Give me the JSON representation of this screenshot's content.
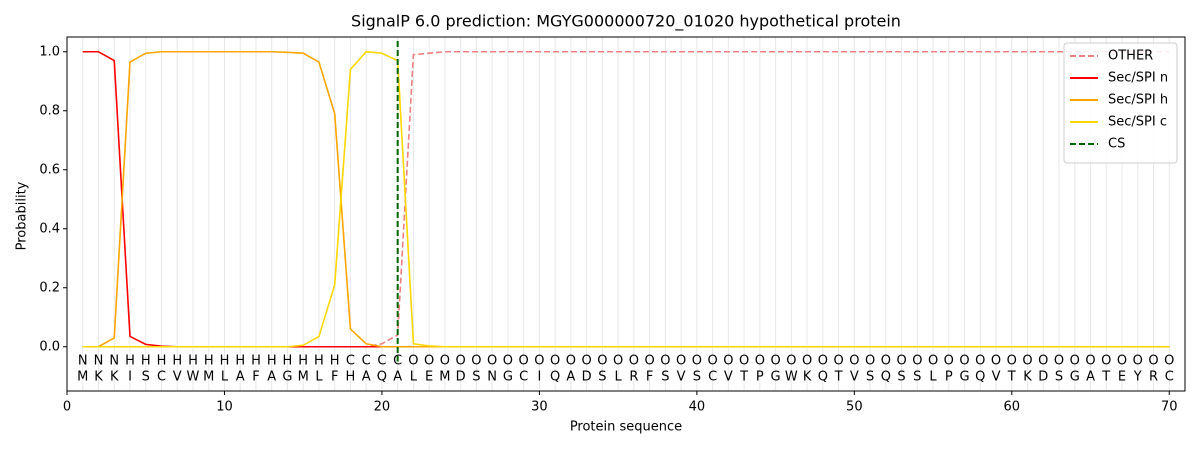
{
  "chart_data": {
    "type": "line",
    "title": "SignalP 6.0 prediction: MGYG000000720_01020 hypothetical protein",
    "x_label": "Protein sequence",
    "y_label": "Probability",
    "xlim": [
      0,
      71
    ],
    "ylim": [
      -0.15,
      1.05
    ],
    "xticks": [
      0,
      10,
      20,
      30,
      40,
      50,
      60,
      70
    ],
    "yticks": [
      {
        "value": 0,
        "label": "0.0"
      },
      {
        "value": 0.2,
        "label": "0.2"
      },
      {
        "value": 0.4,
        "label": "0.4"
      },
      {
        "value": 0.6,
        "label": "0.6"
      },
      {
        "value": 0.8,
        "label": "0.8"
      },
      {
        "value": 1,
        "label": "1.0"
      }
    ],
    "grid": true,
    "legend": "upper right",
    "x": [
      1,
      2,
      3,
      4,
      5,
      6,
      7,
      8,
      9,
      10,
      11,
      12,
      13,
      14,
      15,
      16,
      17,
      18,
      19,
      20,
      21,
      22,
      23,
      24,
      25,
      26,
      27,
      28,
      29,
      30,
      31,
      32,
      33,
      34,
      35,
      36,
      37,
      38,
      39,
      40,
      41,
      42,
      43,
      44,
      45,
      46,
      47,
      48,
      49,
      50,
      51,
      52,
      53,
      54,
      55,
      56,
      57,
      58,
      59,
      60,
      61,
      62,
      63,
      64,
      65,
      66,
      67,
      68,
      69,
      70
    ],
    "series": [
      {
        "name": "OTHER",
        "color": "#f08080",
        "dash": true,
        "values": [
          0,
          0,
          0,
          0,
          0,
          0,
          0,
          0,
          0,
          0,
          0,
          0,
          0,
          0,
          0,
          0,
          0,
          0,
          0,
          0.01,
          0.04,
          0.99,
          0.995,
          1,
          1,
          1,
          1,
          1,
          1,
          1,
          1,
          1,
          1,
          1,
          1,
          1,
          1,
          1,
          1,
          1,
          1,
          1,
          1,
          1,
          1,
          1,
          1,
          1,
          1,
          1,
          1,
          1,
          1,
          1,
          1,
          1,
          1,
          1,
          1,
          1,
          1,
          1,
          1,
          1,
          1,
          1,
          1,
          1,
          1,
          1
        ]
      },
      {
        "name": "Sec/SPI n",
        "color": "#ff0000",
        "values": [
          1,
          1,
          0.97,
          0.035,
          0.008,
          0.002,
          0,
          0,
          0,
          0,
          0,
          0,
          0,
          0,
          0,
          0,
          0,
          0,
          0,
          0,
          0,
          0,
          0,
          0,
          0,
          0,
          0,
          0,
          0,
          0,
          0,
          0,
          0,
          0,
          0,
          0,
          0,
          0,
          0,
          0,
          0,
          0,
          0,
          0,
          0,
          0,
          0,
          0,
          0,
          0,
          0,
          0,
          0,
          0,
          0,
          0,
          0,
          0,
          0,
          0,
          0,
          0,
          0,
          0,
          0,
          0,
          0,
          0,
          0,
          0
        ]
      },
      {
        "name": "Sec/SPI h",
        "color": "#ffa500",
        "values": [
          0,
          0,
          0.03,
          0.965,
          0.995,
          1,
          1,
          1,
          1,
          1,
          1,
          1,
          1,
          0.998,
          0.995,
          0.965,
          0.79,
          0.06,
          0.01,
          0,
          0,
          0,
          0,
          0,
          0,
          0,
          0,
          0,
          0,
          0,
          0,
          0,
          0,
          0,
          0,
          0,
          0,
          0,
          0,
          0,
          0,
          0,
          0,
          0,
          0,
          0,
          0,
          0,
          0,
          0,
          0,
          0,
          0,
          0,
          0,
          0,
          0,
          0,
          0,
          0,
          0,
          0,
          0,
          0,
          0,
          0,
          0,
          0,
          0,
          0
        ]
      },
      {
        "name": "Sec/SPI c",
        "color": "#ffd700",
        "values": [
          0,
          0,
          0,
          0,
          0,
          0,
          0,
          0,
          0,
          0,
          0,
          0,
          0,
          0,
          0.005,
          0.035,
          0.21,
          0.94,
          1,
          0.995,
          0.97,
          0.01,
          0.003,
          0,
          0,
          0,
          0,
          0,
          0,
          0,
          0,
          0,
          0,
          0,
          0,
          0,
          0,
          0,
          0,
          0,
          0,
          0,
          0,
          0,
          0,
          0,
          0,
          0,
          0,
          0,
          0,
          0,
          0,
          0,
          0,
          0,
          0,
          0,
          0,
          0,
          0,
          0,
          0,
          0,
          0,
          0,
          0,
          0,
          0,
          0
        ]
      }
    ],
    "cs": {
      "name": "CS",
      "x": 21,
      "color": "#006400"
    },
    "labels": [
      "N",
      "N",
      "N",
      "H",
      "H",
      "H",
      "H",
      "H",
      "H",
      "H",
      "H",
      "H",
      "H",
      "H",
      "H",
      "H",
      "H",
      "C",
      "C",
      "C",
      "C",
      "O",
      "O",
      "O",
      "O",
      "O",
      "O",
      "O",
      "O",
      "O",
      "O",
      "O",
      "O",
      "O",
      "O",
      "O",
      "O",
      "O",
      "O",
      "O",
      "O",
      "O",
      "O",
      "O",
      "O",
      "O",
      "O",
      "O",
      "O",
      "O",
      "O",
      "O",
      "O",
      "O",
      "O",
      "O",
      "O",
      "O",
      "O",
      "O",
      "O",
      "O",
      "O",
      "O",
      "O",
      "O",
      "O",
      "O",
      "O",
      "O"
    ],
    "label_colors": {
      "N": "#ff0000",
      "H": "#ffa500",
      "C": "#ffd700",
      "O": "#808080"
    },
    "sequence": [
      "M",
      "K",
      "K",
      "I",
      "S",
      "C",
      "V",
      "W",
      "M",
      "L",
      "A",
      "F",
      "A",
      "G",
      "M",
      "L",
      "F",
      "H",
      "A",
      "Q",
      "A",
      "L",
      "E",
      "M",
      "D",
      "S",
      "N",
      "G",
      "C",
      "I",
      "Q",
      "A",
      "D",
      "S",
      "L",
      "R",
      "F",
      "S",
      "V",
      "S",
      "C",
      "V",
      "T",
      "P",
      "G",
      "W",
      "K",
      "Q",
      "T",
      "V",
      "S",
      "Q",
      "S",
      "S",
      "L",
      "P",
      "G",
      "Q",
      "V",
      "T",
      "K",
      "D",
      "S",
      "G",
      "A",
      "T",
      "E",
      "Y",
      "R",
      "C"
    ]
  }
}
